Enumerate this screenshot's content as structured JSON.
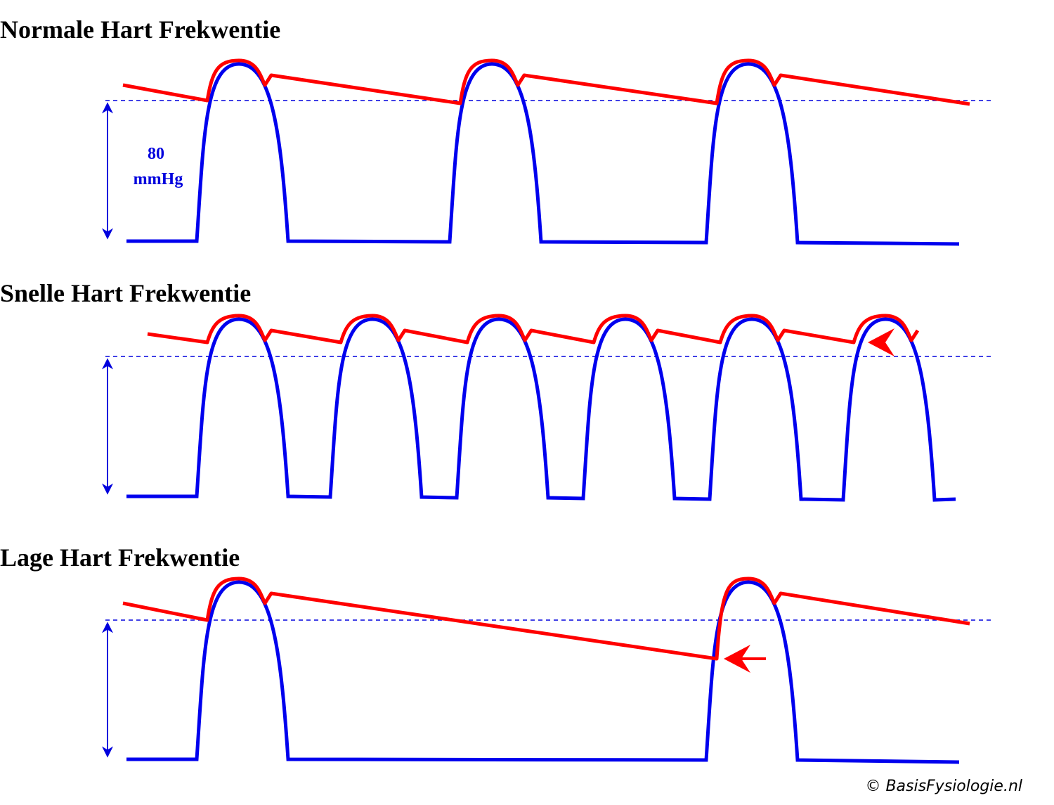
{
  "panels": [
    {
      "title": "Normale Hart Frekwentie",
      "pressure_label": {
        "value": "80",
        "unit": "mmHg"
      }
    },
    {
      "title": "Snelle Hart Frekwentie"
    },
    {
      "title": "Lage Hart Frekwentie"
    }
  ],
  "footer": {
    "copyright": "© BasisFysiologie.nl"
  }
}
